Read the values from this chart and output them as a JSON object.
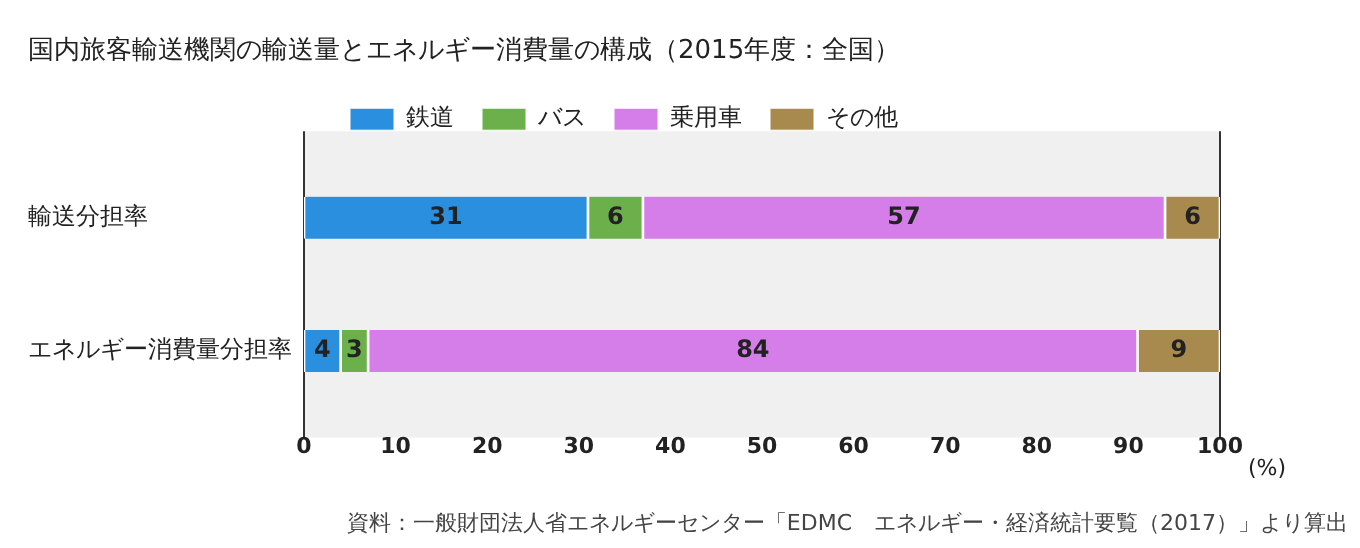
{
  "chart_data": {
    "type": "bar",
    "orientation": "horizontal",
    "stacked": true,
    "title": "国内旅客輸送機関の輸送量とエネルギー消費量の構成（2015年度：全国）",
    "xlabel": "(%)",
    "categories": [
      "輸送分担率",
      "エネルギー消費量分担率"
    ],
    "series": [
      {
        "name": "鉄道",
        "color": "#2b8fe0",
        "values": [
          31,
          4
        ]
      },
      {
        "name": "バス",
        "color": "#6bb04a",
        "values": [
          6,
          3
        ]
      },
      {
        "name": "乗用車",
        "color": "#d57de8",
        "values": [
          57,
          84
        ]
      },
      {
        "name": "その他",
        "color": "#a88a4e",
        "values": [
          6,
          9
        ]
      }
    ],
    "xlim": [
      0,
      100
    ],
    "xticks": [
      0,
      10,
      20,
      30,
      40,
      50,
      60,
      70,
      80,
      90,
      100
    ],
    "grid": false,
    "legend": "top",
    "data_labels": true,
    "annotations": [
      "資料：一般財団法人省エネルギーセンター「EDMC　エネルギー・経済統計要覧（2017）」より算出"
    ]
  }
}
